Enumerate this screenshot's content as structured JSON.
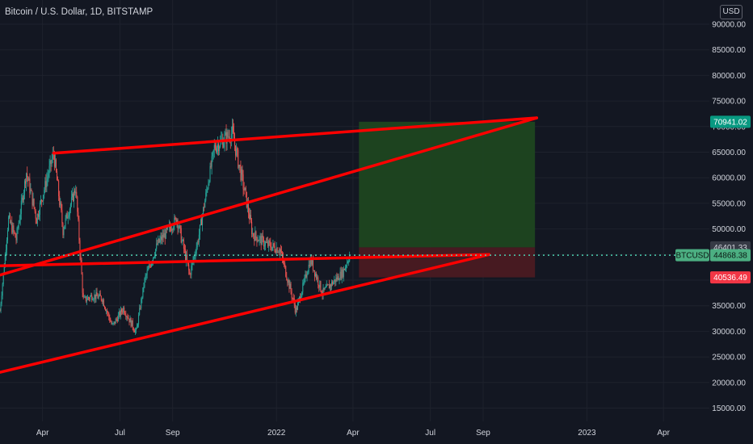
{
  "header": {
    "title": "Bitcoin / U.S. Dollar, 1D, BITSTAMP",
    "currency": "USD"
  },
  "colors": {
    "background": "#131722",
    "grid": "#1e222d",
    "text": "#d1d4dc",
    "trendline": "#ff0000",
    "candle_up": "#26a69a",
    "candle_down": "#ef5350",
    "target_zone": "#1e4620",
    "stop_zone": "#4a1a22",
    "target_label": "#089981",
    "stop_label": "#f23645",
    "price_label": "#4caf82"
  },
  "chart_data": {
    "type": "candlestick",
    "symbol": "BTCUSD",
    "interval": "1D",
    "exchange": "BITSTAMP",
    "y_axis": {
      "range": [
        10000,
        95000
      ],
      "ticks": [
        15000,
        20000,
        25000,
        30000,
        35000,
        40000,
        45000,
        50000,
        55000,
        60000,
        65000,
        70000,
        75000,
        80000,
        85000,
        90000
      ],
      "tick_labels": [
        "15000.00",
        "20000.00",
        "25000.00",
        "30000.00",
        "35000.00",
        "40000.00",
        "45000.00",
        "50000.00",
        "55000.00",
        "60000.00",
        "65000.00",
        "70000.00",
        "75000.00",
        "80000.00",
        "85000.00",
        "90000.00"
      ]
    },
    "x_axis": {
      "range": [
        "2021-02-10",
        "2023-05-25"
      ],
      "ticks": [
        {
          "date": "2021-04-01",
          "label": "Apr"
        },
        {
          "date": "2021-07-01",
          "label": "Jul"
        },
        {
          "date": "2021-09-01",
          "label": "Sep"
        },
        {
          "date": "2022-01-01",
          "label": "2022"
        },
        {
          "date": "2022-04-01",
          "label": "Apr"
        },
        {
          "date": "2022-07-01",
          "label": "Jul"
        },
        {
          "date": "2022-09-01",
          "label": "Sep"
        },
        {
          "date": "2023-01-01",
          "label": "2023"
        },
        {
          "date": "2023-04-01",
          "label": "Apr"
        }
      ]
    },
    "price_path": [
      {
        "date": "2021-02-10",
        "close": 34000
      },
      {
        "date": "2021-02-20",
        "close": 52000
      },
      {
        "date": "2021-03-01",
        "close": 48000
      },
      {
        "date": "2021-03-13",
        "close": 61000
      },
      {
        "date": "2021-03-25",
        "close": 52000
      },
      {
        "date": "2021-04-14",
        "close": 64800
      },
      {
        "date": "2021-04-25",
        "close": 50000
      },
      {
        "date": "2021-05-10",
        "close": 58000
      },
      {
        "date": "2021-05-19",
        "close": 36000
      },
      {
        "date": "2021-05-30",
        "close": 37000
      },
      {
        "date": "2021-06-10",
        "close": 36500
      },
      {
        "date": "2021-06-22",
        "close": 31000
      },
      {
        "date": "2021-07-05",
        "close": 34500
      },
      {
        "date": "2021-07-20",
        "close": 29800
      },
      {
        "date": "2021-07-30",
        "close": 40000
      },
      {
        "date": "2021-08-14",
        "close": 47000
      },
      {
        "date": "2021-09-06",
        "close": 52000
      },
      {
        "date": "2021-09-21",
        "close": 41000
      },
      {
        "date": "2021-10-01",
        "close": 48000
      },
      {
        "date": "2021-10-20",
        "close": 66000
      },
      {
        "date": "2021-11-10",
        "close": 68800
      },
      {
        "date": "2021-11-25",
        "close": 57000
      },
      {
        "date": "2021-12-04",
        "close": 49000
      },
      {
        "date": "2021-12-20",
        "close": 47000
      },
      {
        "date": "2022-01-05",
        "close": 46000
      },
      {
        "date": "2022-01-24",
        "close": 34000
      },
      {
        "date": "2022-02-10",
        "close": 44000
      },
      {
        "date": "2022-02-24",
        "close": 37500
      },
      {
        "date": "2022-03-05",
        "close": 39000
      },
      {
        "date": "2022-03-20",
        "close": 41500
      },
      {
        "date": "2022-03-28",
        "close": 44868
      }
    ],
    "trendlines": [
      {
        "name": "upper-channel",
        "from": {
          "date": "2021-04-14",
          "price": 64800
        },
        "to": {
          "date": "2022-11-03",
          "price": 71700
        }
      },
      {
        "name": "mid-rising",
        "from": {
          "date": "2021-02-10",
          "price": 41000
        },
        "to": {
          "date": "2022-11-03",
          "price": 71700
        }
      },
      {
        "name": "horizontal-support",
        "from": {
          "date": "2021-02-10",
          "price": 42800
        },
        "to": {
          "date": "2022-09-08",
          "price": 45000
        }
      },
      {
        "name": "lower-channel",
        "from": {
          "date": "2021-02-10",
          "price": 22000
        },
        "to": {
          "date": "2022-09-08",
          "price": 45000
        }
      }
    ],
    "position": {
      "type": "long",
      "start": "2022-04-08",
      "end": "2022-11-01",
      "entry": 46401.33,
      "target": 70941.02,
      "stop": 40536.49
    },
    "price_labels": {
      "target": "70941.02",
      "entry": "46401.33",
      "symbol": "BTCUSD",
      "last": "44868.38",
      "stop": "40536.49"
    },
    "last_price": 44868.38
  }
}
